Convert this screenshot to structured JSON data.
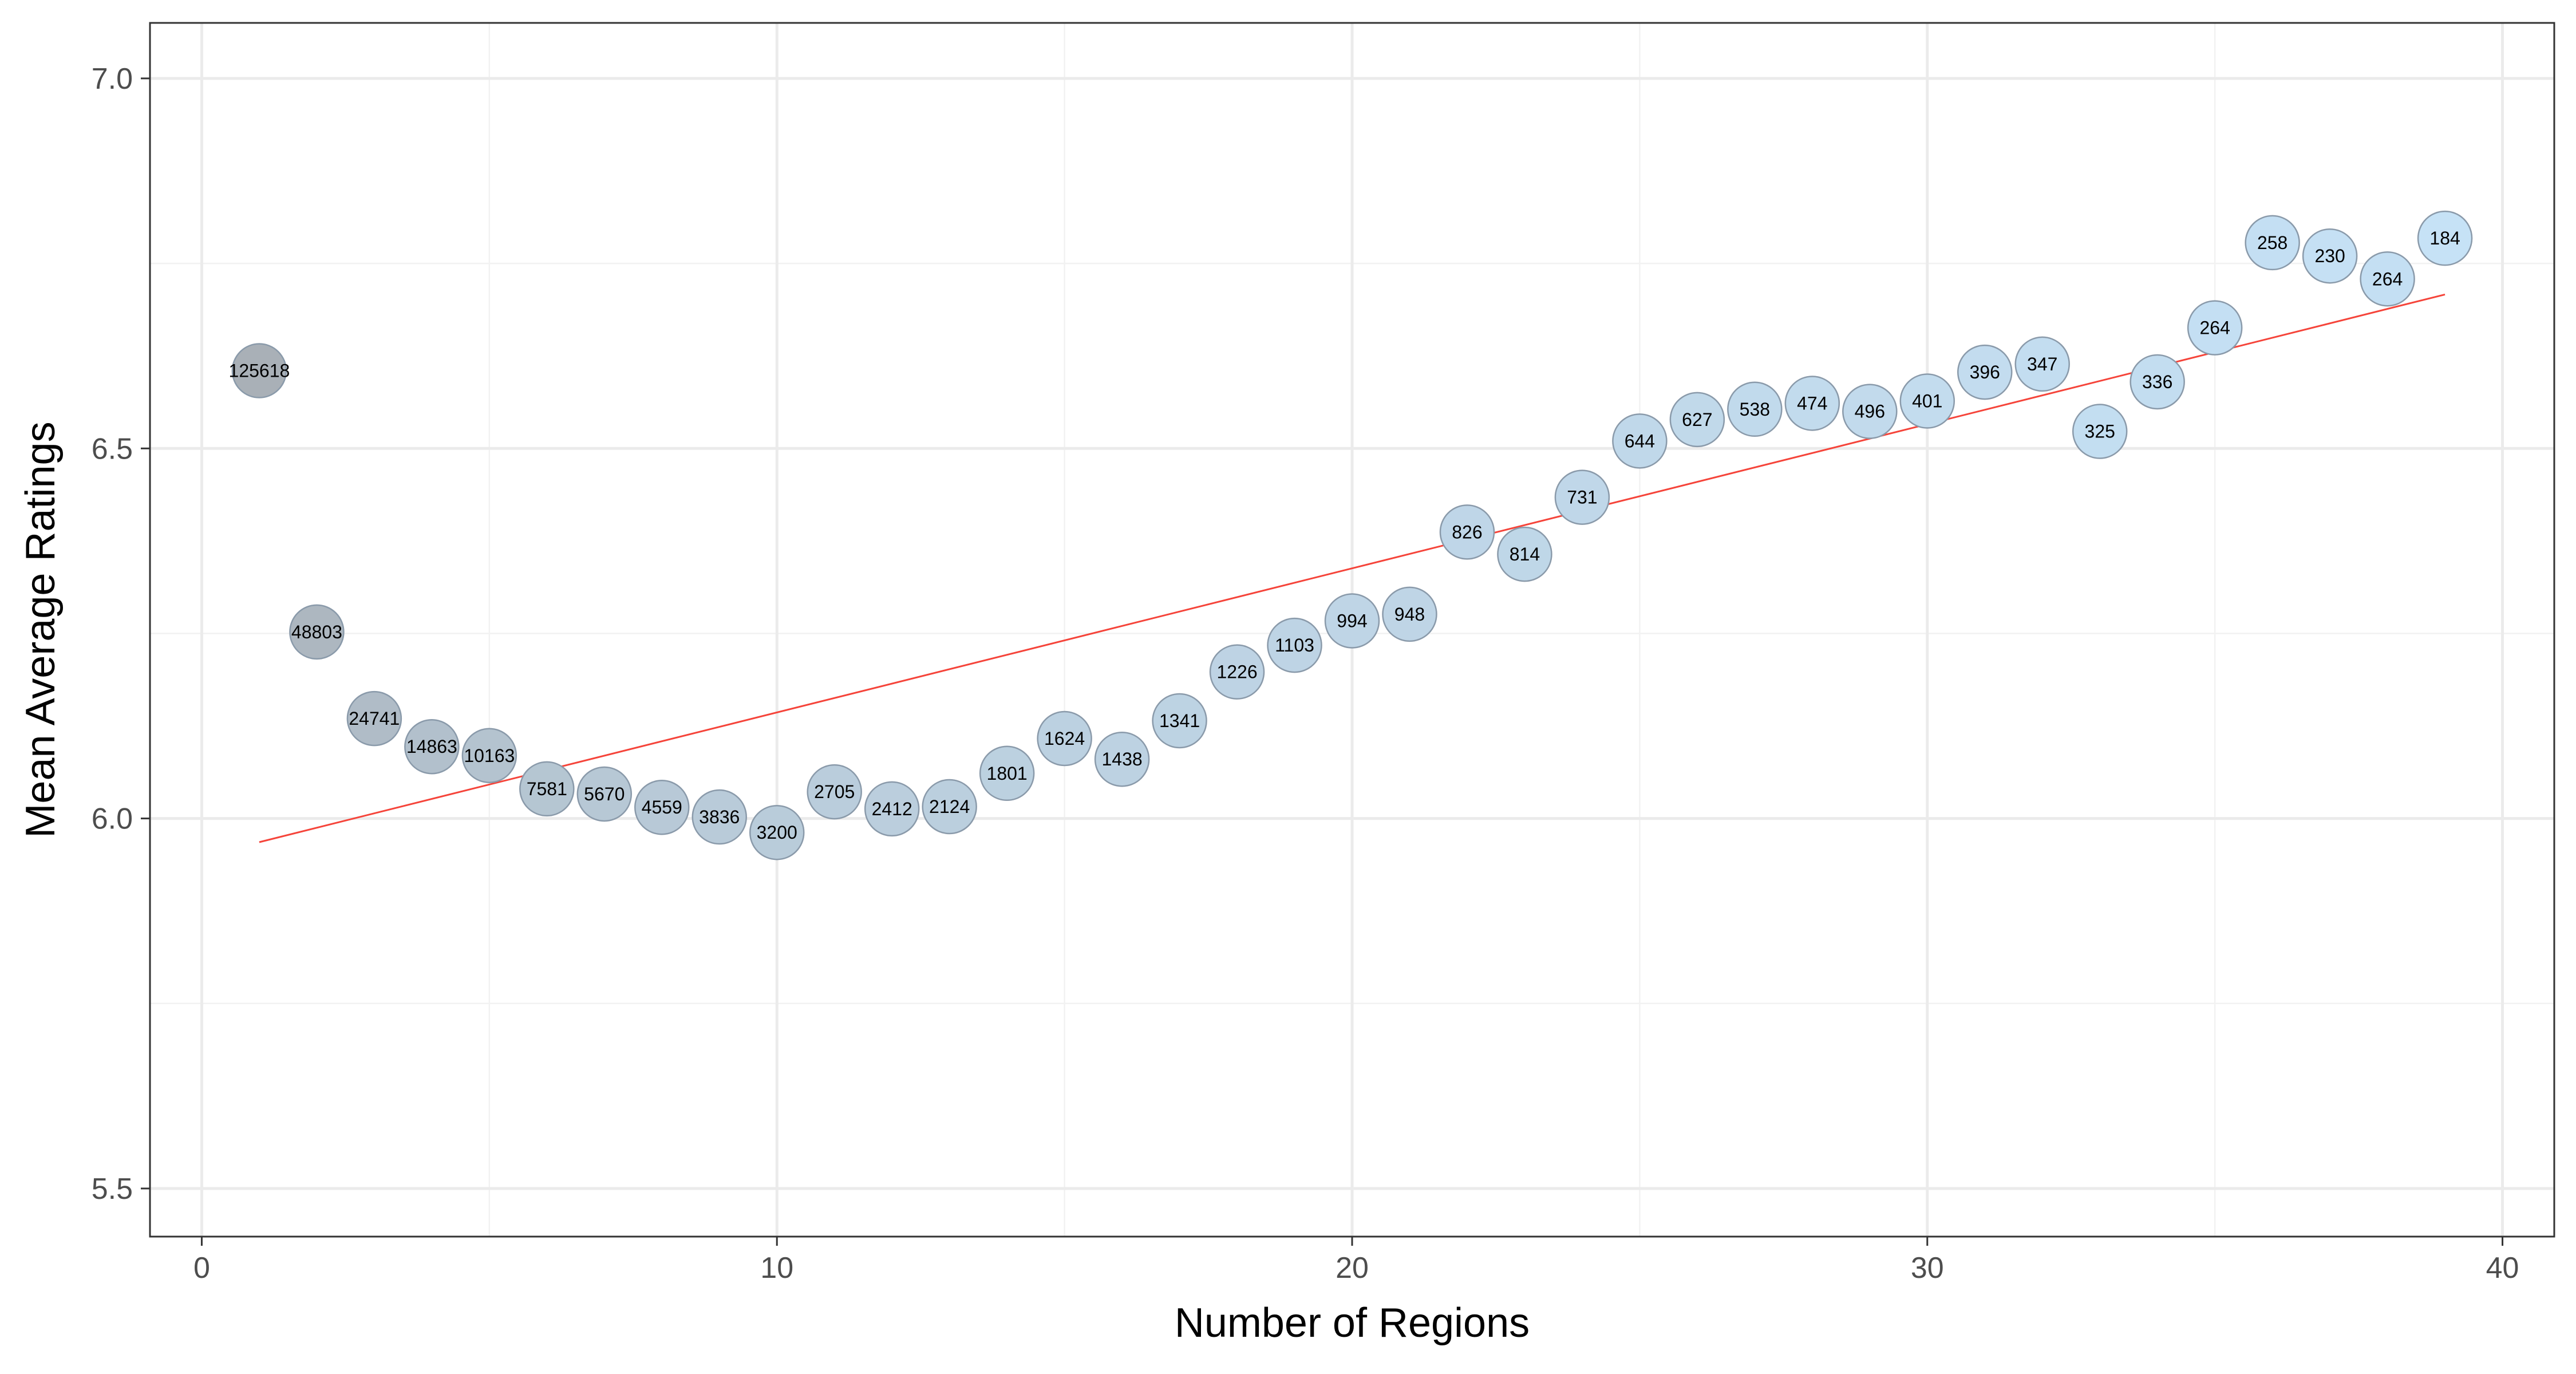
{
  "chart_data": {
    "type": "scatter",
    "title": "",
    "xlabel": "Number of Regions",
    "ylabel": "Mean Average Ratings",
    "xlim": [
      -0.9,
      40.9
    ],
    "ylim": [
      5.435,
      7.075
    ],
    "x_ticks": [
      0,
      10,
      20,
      30,
      40
    ],
    "y_ticks": [
      5.5,
      6.0,
      6.5,
      7.0
    ],
    "y_tick_labels": [
      "5.5",
      "6.0",
      "6.5",
      "7.0"
    ],
    "grid": true,
    "legend": "none",
    "color_scale": {
      "low": "#a9b0b7",
      "high": "#c6e2f6",
      "low_count": 125618,
      "high_count": 184
    },
    "points": [
      {
        "x": 1,
        "y": 6.605,
        "label": "125618"
      },
      {
        "x": 2,
        "y": 6.252,
        "label": "48803"
      },
      {
        "x": 3,
        "y": 6.135,
        "label": "24741"
      },
      {
        "x": 4,
        "y": 6.097,
        "label": "14863"
      },
      {
        "x": 5,
        "y": 6.085,
        "label": "10163"
      },
      {
        "x": 6,
        "y": 6.04,
        "label": "7581"
      },
      {
        "x": 7,
        "y": 6.033,
        "label": "5670"
      },
      {
        "x": 8,
        "y": 6.015,
        "label": "4559"
      },
      {
        "x": 9,
        "y": 6.002,
        "label": "3836"
      },
      {
        "x": 10,
        "y": 5.981,
        "label": "3200"
      },
      {
        "x": 11,
        "y": 6.036,
        "label": "2705"
      },
      {
        "x": 12,
        "y": 6.013,
        "label": "2412"
      },
      {
        "x": 13,
        "y": 6.016,
        "label": "2124"
      },
      {
        "x": 14,
        "y": 6.061,
        "label": "1801"
      },
      {
        "x": 15,
        "y": 6.108,
        "label": "1624"
      },
      {
        "x": 16,
        "y": 6.08,
        "label": "1438"
      },
      {
        "x": 17,
        "y": 6.132,
        "label": "1341"
      },
      {
        "x": 18,
        "y": 6.198,
        "label": "1226"
      },
      {
        "x": 19,
        "y": 6.234,
        "label": "1103"
      },
      {
        "x": 20,
        "y": 6.267,
        "label": "994"
      },
      {
        "x": 21,
        "y": 6.276,
        "label": "948"
      },
      {
        "x": 22,
        "y": 6.387,
        "label": "826"
      },
      {
        "x": 23,
        "y": 6.357,
        "label": "814"
      },
      {
        "x": 24,
        "y": 6.434,
        "label": "731"
      },
      {
        "x": 25,
        "y": 6.51,
        "label": "644"
      },
      {
        "x": 26,
        "y": 6.539,
        "label": "627"
      },
      {
        "x": 27,
        "y": 6.553,
        "label": "538"
      },
      {
        "x": 28,
        "y": 6.561,
        "label": "474"
      },
      {
        "x": 29,
        "y": 6.55,
        "label": "496"
      },
      {
        "x": 30,
        "y": 6.564,
        "label": "401"
      },
      {
        "x": 31,
        "y": 6.603,
        "label": "396"
      },
      {
        "x": 32,
        "y": 6.614,
        "label": "347"
      },
      {
        "x": 33,
        "y": 6.523,
        "label": "325"
      },
      {
        "x": 34,
        "y": 6.59,
        "label": "336"
      },
      {
        "x": 35,
        "y": 6.663,
        "label": "264"
      },
      {
        "x": 36,
        "y": 6.778,
        "label": "258"
      },
      {
        "x": 37,
        "y": 6.76,
        "label": "230"
      },
      {
        "x": 38,
        "y": 6.729,
        "label": "264"
      },
      {
        "x": 39,
        "y": 6.784,
        "label": "184"
      }
    ],
    "trend_line": {
      "color": "#f5443a",
      "x": [
        1,
        39
      ],
      "y": [
        5.968,
        6.708
      ]
    }
  }
}
